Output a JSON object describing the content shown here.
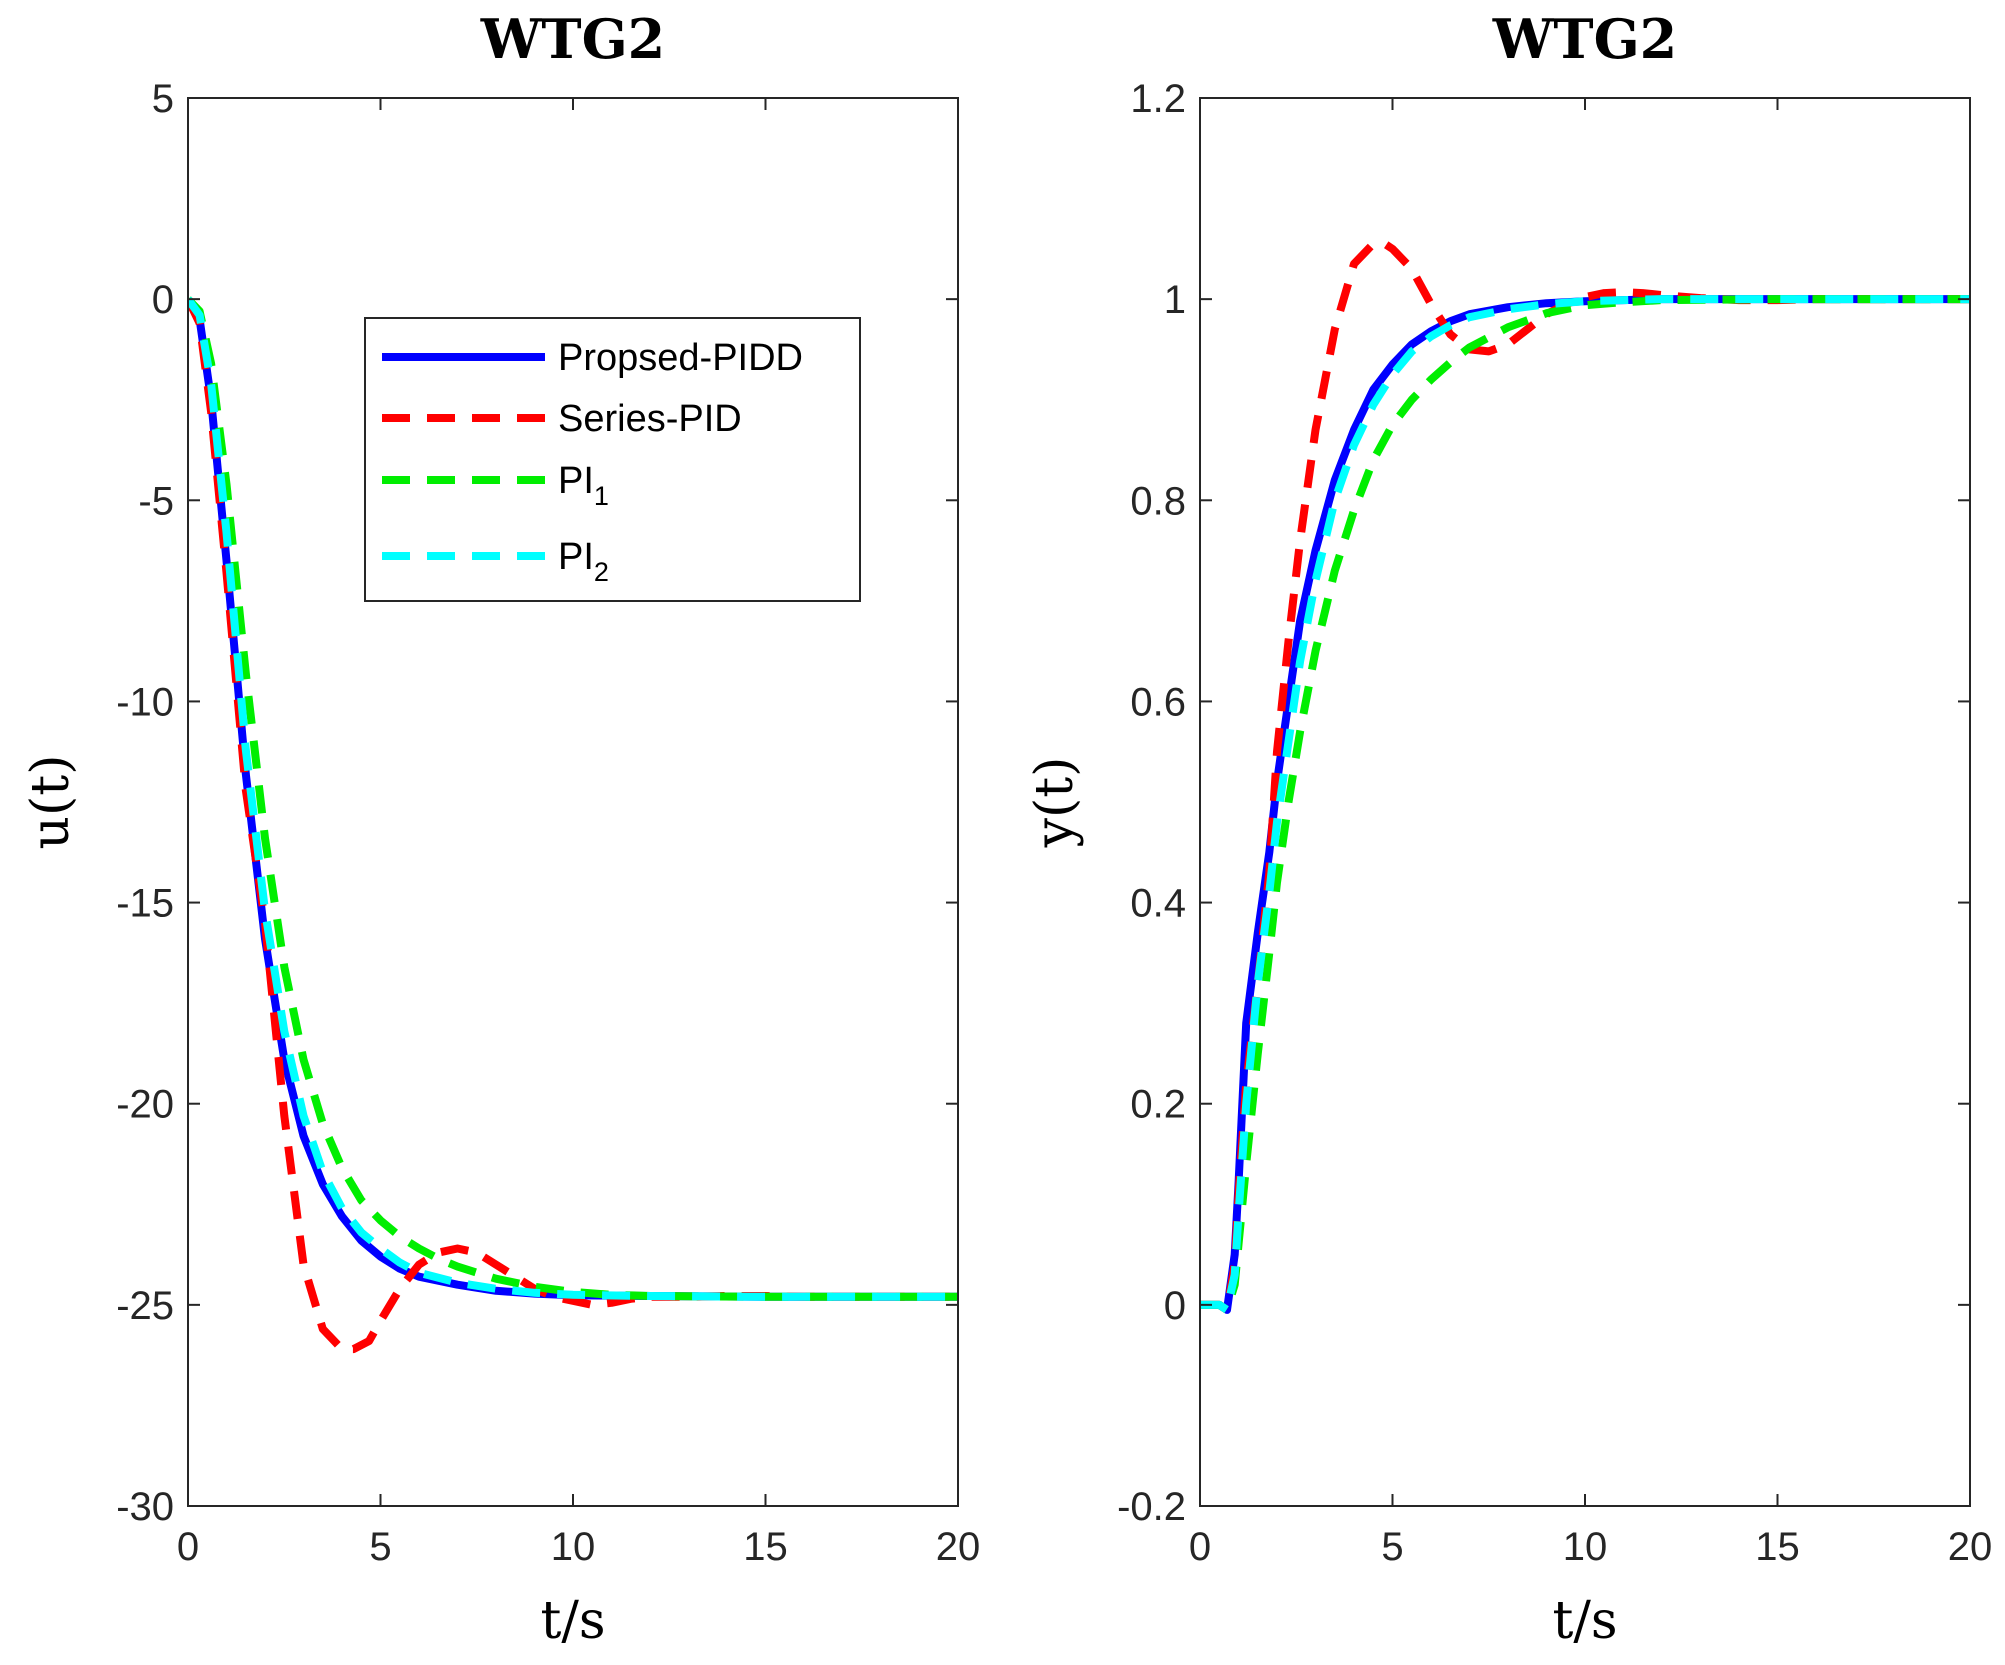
{
  "chart_data": [
    {
      "type": "line",
      "title": "WTG2",
      "xlabel": "t/s",
      "ylabel": "u(t)",
      "xlim": [
        0,
        20
      ],
      "ylim": [
        -30,
        5
      ],
      "xticks": [
        0,
        5,
        10,
        15,
        20
      ],
      "yticks": [
        -30,
        -25,
        -20,
        -15,
        -10,
        -5,
        0,
        5
      ],
      "xtick_labels": [
        "0",
        "5",
        "10",
        "15",
        "20"
      ],
      "ytick_labels": [
        "-30",
        "-25",
        "-20",
        "-15",
        "-10",
        "-5",
        "0",
        "5"
      ],
      "grid": false,
      "legend": {
        "placement": "upper-center",
        "entries": [
          {
            "base": "Propsed-PIDD",
            "sub": ""
          },
          {
            "base": "Series-PID",
            "sub": ""
          },
          {
            "base": "PI",
            "sub": "1"
          },
          {
            "base": "PI",
            "sub": "2"
          }
        ]
      },
      "series": [
        {
          "name": "Propsed-PIDD",
          "color": "#0000ff",
          "style": "solid",
          "x": [
            0,
            0.3,
            0.6,
            1.0,
            1.5,
            2.0,
            2.5,
            3.0,
            3.5,
            4.0,
            4.5,
            5.0,
            5.5,
            6.0,
            7.0,
            8.0,
            9.0,
            10.0,
            12.0,
            15.0,
            20.0
          ],
          "y": [
            0,
            -0.5,
            -2.5,
            -6.5,
            -11.8,
            -15.9,
            -18.9,
            -20.8,
            -22.0,
            -22.8,
            -23.4,
            -23.8,
            -24.1,
            -24.3,
            -24.5,
            -24.65,
            -24.72,
            -24.76,
            -24.78,
            -24.8,
            -24.8
          ]
        },
        {
          "name": "Series-PID",
          "color": "#ff0000",
          "style": "dashed",
          "x": [
            0,
            0.3,
            0.6,
            1.0,
            1.5,
            2.0,
            2.5,
            3.0,
            3.5,
            4.0,
            4.3,
            4.7,
            5.0,
            5.5,
            6.0,
            6.5,
            7.0,
            7.5,
            8.0,
            8.5,
            9.0,
            9.5,
            10.0,
            10.5,
            11.0,
            11.5,
            12.0,
            13.0,
            14.0,
            15.0,
            16.0,
            20.0
          ],
          "y": [
            0,
            -0.6,
            -2.8,
            -6.8,
            -12.2,
            -15.5,
            -20.3,
            -24.0,
            -25.6,
            -26.1,
            -26.1,
            -25.9,
            -25.4,
            -24.6,
            -24.0,
            -23.7,
            -23.6,
            -23.7,
            -24.0,
            -24.3,
            -24.6,
            -24.8,
            -24.9,
            -25.0,
            -24.95,
            -24.85,
            -24.8,
            -24.8,
            -24.78,
            -24.78,
            -24.8,
            -24.8
          ]
        },
        {
          "name": "PI_1",
          "color": "#00ee00",
          "style": "dashed",
          "x": [
            0,
            0.3,
            0.6,
            1.0,
            1.5,
            2.0,
            2.5,
            3.0,
            3.5,
            4.0,
            4.5,
            5.0,
            5.5,
            6.0,
            6.5,
            7.0,
            8.0,
            9.0,
            10.0,
            11.0,
            12.0,
            15.0,
            20.0
          ],
          "y": [
            0,
            -0.3,
            -1.6,
            -4.6,
            -9.3,
            -13.4,
            -16.6,
            -18.9,
            -20.5,
            -21.6,
            -22.4,
            -22.9,
            -23.3,
            -23.6,
            -23.85,
            -24.05,
            -24.35,
            -24.55,
            -24.68,
            -24.75,
            -24.78,
            -24.8,
            -24.8
          ]
        },
        {
          "name": "PI_2",
          "color": "#00ffff",
          "style": "dashed",
          "x": [
            0,
            0.3,
            0.6,
            1.0,
            1.5,
            2.0,
            2.5,
            3.0,
            3.5,
            4.0,
            4.5,
            5.0,
            5.5,
            6.0,
            7.0,
            8.0,
            9.0,
            10.0,
            12.0,
            15.0,
            20.0
          ],
          "y": [
            0,
            -0.4,
            -2.1,
            -5.8,
            -11.2,
            -15.2,
            -18.2,
            -20.3,
            -21.7,
            -22.6,
            -23.2,
            -23.6,
            -23.95,
            -24.2,
            -24.45,
            -24.6,
            -24.7,
            -24.75,
            -24.78,
            -24.8,
            -24.8
          ]
        }
      ]
    },
    {
      "type": "line",
      "title": "WTG2",
      "xlabel": "t/s",
      "ylabel": "y(t)",
      "xlim": [
        0,
        20
      ],
      "ylim": [
        -0.2,
        1.2
      ],
      "xticks": [
        0,
        5,
        10,
        15,
        20
      ],
      "yticks": [
        -0.2,
        0,
        0.2,
        0.4,
        0.6,
        0.8,
        1,
        1.2
      ],
      "xtick_labels": [
        "0",
        "5",
        "10",
        "15",
        "20"
      ],
      "ytick_labels": [
        "-0.2",
        "0",
        "0.2",
        "0.4",
        "0.6",
        "0.8",
        "1",
        "1.2"
      ],
      "grid": false,
      "series": [
        {
          "name": "Propsed-PIDD",
          "color": "#0000ff",
          "style": "solid",
          "x": [
            0,
            0.5,
            0.7,
            0.9,
            1.0,
            1.2,
            1.5,
            1.8,
            2.0,
            2.3,
            2.6,
            3.0,
            3.5,
            4.0,
            4.5,
            5.0,
            5.5,
            6.0,
            6.5,
            7.0,
            8.0,
            9.0,
            10.0,
            11.0,
            12.0,
            15.0,
            20.0
          ],
          "y": [
            0,
            0,
            -0.005,
            0.05,
            0.12,
            0.28,
            0.37,
            0.45,
            0.52,
            0.6,
            0.68,
            0.75,
            0.82,
            0.87,
            0.91,
            0.935,
            0.955,
            0.968,
            0.978,
            0.985,
            0.992,
            0.996,
            0.998,
            0.999,
            1.0,
            1.0,
            1.0
          ]
        },
        {
          "name": "Series-PID",
          "color": "#ff0000",
          "style": "dashed",
          "x": [
            0,
            0.5,
            0.7,
            0.9,
            1.0,
            1.2,
            1.5,
            1.8,
            2.0,
            2.3,
            2.6,
            3.0,
            3.5,
            4.0,
            4.5,
            4.8,
            5.0,
            5.5,
            6.0,
            6.5,
            7.0,
            7.5,
            8.0,
            8.5,
            9.0,
            9.5,
            10.0,
            10.5,
            11.0,
            11.5,
            12.0,
            13.0,
            14.0,
            15.0,
            16.0,
            20.0
          ],
          "y": [
            0,
            0,
            -0.005,
            0.04,
            0.11,
            0.22,
            0.32,
            0.43,
            0.55,
            0.66,
            0.76,
            0.87,
            0.97,
            1.035,
            1.055,
            1.055,
            1.05,
            1.03,
            0.995,
            0.965,
            0.95,
            0.948,
            0.955,
            0.97,
            0.985,
            0.995,
            1.002,
            1.006,
            1.007,
            1.006,
            1.004,
            1.001,
            0.999,
            0.999,
            1.0,
            1.0
          ]
        },
        {
          "name": "PI_1",
          "color": "#00ee00",
          "style": "dashed",
          "x": [
            0,
            0.5,
            0.7,
            0.9,
            1.0,
            1.2,
            1.5,
            1.8,
            2.0,
            2.3,
            2.6,
            3.0,
            3.5,
            4.0,
            4.5,
            5.0,
            5.5,
            6.0,
            6.5,
            7.0,
            8.0,
            9.0,
            10.0,
            11.0,
            12.0,
            15.0,
            20.0
          ],
          "y": [
            0,
            0,
            -0.005,
            0.02,
            0.06,
            0.14,
            0.25,
            0.35,
            0.42,
            0.5,
            0.57,
            0.65,
            0.73,
            0.79,
            0.84,
            0.875,
            0.9,
            0.92,
            0.937,
            0.952,
            0.972,
            0.986,
            0.994,
            0.997,
            0.999,
            1.0,
            1.0
          ]
        },
        {
          "name": "PI_2",
          "color": "#00ffff",
          "style": "dashed",
          "x": [
            0,
            0.5,
            0.7,
            0.9,
            1.0,
            1.2,
            1.5,
            1.8,
            2.0,
            2.3,
            2.6,
            3.0,
            3.5,
            4.0,
            4.5,
            5.0,
            5.5,
            6.0,
            6.5,
            7.0,
            8.0,
            9.0,
            10.0,
            11.0,
            12.0,
            15.0,
            20.0
          ],
          "y": [
            0,
            0,
            -0.005,
            0.03,
            0.09,
            0.2,
            0.32,
            0.41,
            0.48,
            0.56,
            0.64,
            0.72,
            0.8,
            0.855,
            0.895,
            0.925,
            0.948,
            0.963,
            0.974,
            0.982,
            0.99,
            0.995,
            0.998,
            0.999,
            1.0,
            1.0,
            1.0
          ]
        }
      ]
    }
  ]
}
